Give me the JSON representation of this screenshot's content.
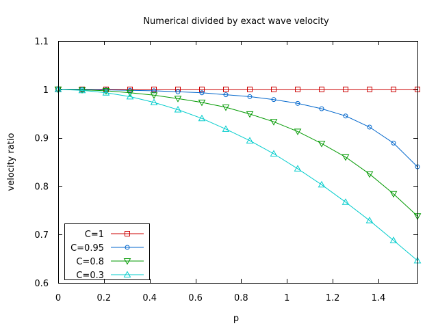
{
  "chart_data": {
    "type": "line",
    "title": "Numerical divided by exact wave velocity",
    "xlabel": "p",
    "ylabel": "velocity ratio",
    "xlim": [
      0,
      1.5708
    ],
    "ylim": [
      0.6,
      1.1
    ],
    "xticks": [
      0,
      0.2,
      0.4,
      0.6,
      0.8,
      1,
      1.2,
      1.4
    ],
    "xtick_labels": [
      "0",
      "0.2",
      "0.4",
      "0.6",
      "0.8",
      "1",
      "1.2",
      "1.4"
    ],
    "yticks": [
      0.6,
      0.7,
      0.8,
      0.9,
      1,
      1.1
    ],
    "ytick_labels": [
      "0.6",
      "0.7",
      "0.8",
      "0.9",
      "1",
      "1.1"
    ],
    "grid": false,
    "legend_position": "bottom-left",
    "x": [
      0,
      0.1047,
      0.2094,
      0.3142,
      0.4189,
      0.5236,
      0.6283,
      0.733,
      0.8378,
      0.9425,
      1.0472,
      1.1519,
      1.2566,
      1.3614,
      1.4661,
      1.5708
    ],
    "series": [
      {
        "name": "C=1",
        "color": "#cc0000",
        "marker": "square",
        "values": [
          1,
          1,
          1,
          1,
          1,
          1,
          1,
          1,
          1,
          1,
          1,
          1,
          1,
          1,
          1,
          1
        ]
      },
      {
        "name": "C=0.95",
        "color": "#0066cc",
        "marker": "circle",
        "values": [
          1,
          1,
          0.999,
          0.998,
          0.997,
          0.995,
          0.993,
          0.989,
          0.985,
          0.979,
          0.971,
          0.96,
          0.945,
          0.922,
          0.889,
          0.84
        ]
      },
      {
        "name": "C=0.8",
        "color": "#009900",
        "marker": "triangle-down",
        "values": [
          1,
          0.999,
          0.997,
          0.993,
          0.988,
          0.981,
          0.973,
          0.963,
          0.949,
          0.933,
          0.913,
          0.888,
          0.86,
          0.825,
          0.784,
          0.738
        ]
      },
      {
        "name": "C=0.3",
        "color": "#00cccc",
        "marker": "triangle-up",
        "values": [
          1,
          0.998,
          0.993,
          0.985,
          0.973,
          0.958,
          0.94,
          0.918,
          0.894,
          0.867,
          0.836,
          0.803,
          0.767,
          0.729,
          0.688,
          0.646
        ]
      }
    ]
  }
}
